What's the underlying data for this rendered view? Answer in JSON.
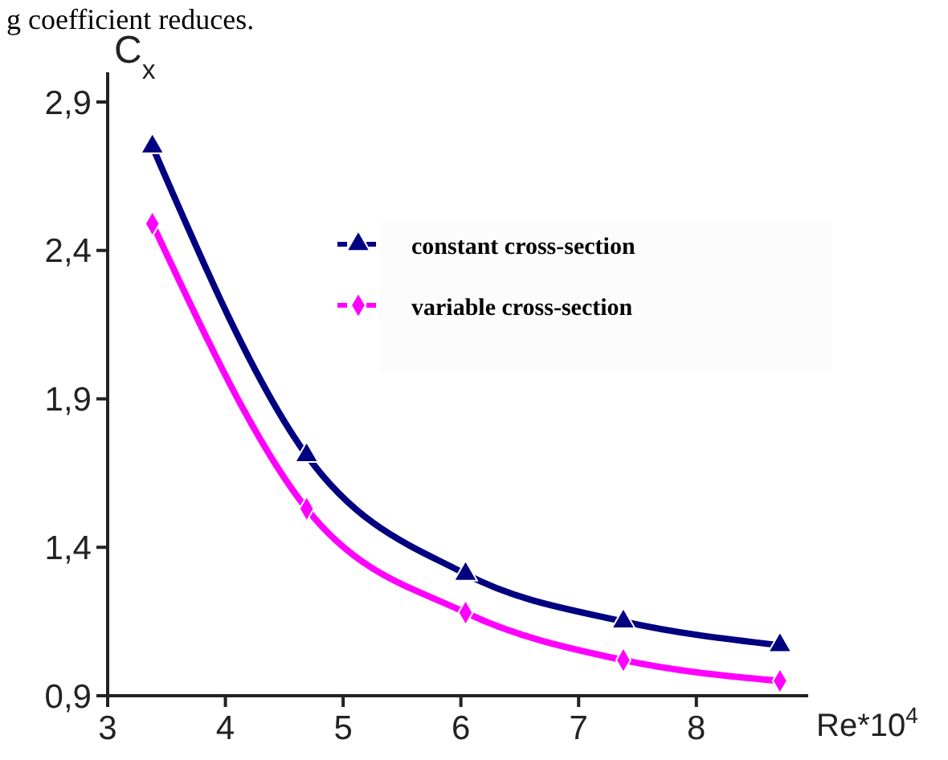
{
  "chart_data": {
    "type": "line",
    "xlabel": "Re*10$^{4}$",
    "ylabel": "C$_{x}$",
    "annotations": [
      "g coefficient reduces."
    ],
    "x": [
      3.38,
      4.69,
      6.04,
      7.38,
      8.71
    ],
    "series": [
      {
        "name": "constant cross-section",
        "color": "#000080",
        "marker": "triangle",
        "values": [
          2.75,
          1.71,
          1.31,
          1.15,
          1.07
        ]
      },
      {
        "name": "variable cross-section",
        "color": "#ff00ff",
        "marker": "diamond",
        "values": [
          2.49,
          1.53,
          1.18,
          1.02,
          0.95
        ]
      }
    ],
    "xlim": [
      3,
      8.95
    ],
    "xticks": [
      3,
      4,
      5,
      6,
      7,
      8
    ],
    "ylim": [
      0.9,
      3.0
    ],
    "yticks": [
      {
        "value": 0.9,
        "label": "0,9"
      },
      {
        "value": 1.4,
        "label": "1,4"
      },
      {
        "value": 1.9,
        "label": "1,9"
      },
      {
        "value": 2.4,
        "label": "2,4"
      },
      {
        "value": 2.9,
        "label": "2,9"
      }
    ],
    "legend": "top right",
    "grid": false,
    "line_style": "solid"
  }
}
